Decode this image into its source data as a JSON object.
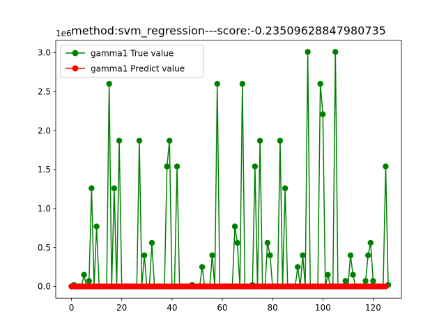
{
  "chart_data": {
    "type": "line",
    "title": "method:svm_regression---score:-0.23509628847980735",
    "xlabel": "",
    "ylabel": "",
    "y_offset_label": "1e6",
    "xlim": [
      -6.25,
      131.25
    ],
    "ylim": [
      -0.15,
      3.16
    ],
    "x_ticks": [
      0,
      20,
      40,
      60,
      80,
      100,
      120
    ],
    "y_ticks": [
      0.0,
      0.5,
      1.0,
      1.5,
      2.0,
      2.5,
      3.0
    ],
    "x_tick_labels": [
      "0",
      "20",
      "40",
      "60",
      "80",
      "100",
      "120"
    ],
    "y_tick_labels": [
      "0.0",
      "0.5",
      "1.0",
      "1.5",
      "2.0",
      "2.5",
      "3.0"
    ],
    "legend_placement": "upper-left",
    "grid": false,
    "series": [
      {
        "name": "gamma1 True value",
        "color": "#008000",
        "values": [
          0,
          0.02,
          0,
          0,
          0,
          0.15,
          0,
          0.07,
          1.26,
          0,
          0.77,
          0,
          0,
          0,
          0,
          2.6,
          0,
          1.26,
          0,
          1.87,
          0,
          0,
          0,
          0,
          0,
          0,
          0,
          1.87,
          0,
          0.4,
          0,
          0,
          0.56,
          0,
          0,
          0,
          0,
          0,
          1.54,
          1.87,
          0,
          0,
          1.54,
          0,
          0,
          0,
          0,
          0,
          0.02,
          0,
          0,
          0,
          0.25,
          0,
          0,
          0,
          0.4,
          0,
          2.6,
          0,
          0,
          0,
          0,
          0,
          0,
          0.77,
          0.56,
          0,
          2.6,
          0,
          0,
          0,
          0.02,
          1.54,
          0,
          1.87,
          0,
          0,
          0.56,
          0.4,
          0,
          0,
          0,
          1.87,
          0,
          1.26,
          0,
          0,
          0,
          0,
          0.25,
          0,
          0.4,
          0,
          3.01,
          0,
          0,
          0,
          0,
          2.6,
          2.21,
          0,
          0.15,
          0,
          0,
          3.01,
          0,
          0,
          0,
          0.07,
          0,
          0.4,
          0.15,
          0,
          0,
          0,
          0,
          0.07,
          0.4,
          0.56,
          0.07,
          0,
          0,
          0,
          0,
          1.54,
          0.02
        ]
      },
      {
        "name": "gamma1 Predict value",
        "color": "#ff0000",
        "values": [
          0,
          0,
          0,
          0,
          0,
          0,
          0,
          0,
          0,
          0,
          0,
          0,
          0,
          0,
          0,
          0,
          0,
          0,
          0,
          0,
          0,
          0,
          0,
          0,
          0,
          0,
          0,
          0,
          0,
          0,
          0,
          0,
          0,
          0,
          0,
          0,
          0,
          0,
          0,
          0,
          0,
          0,
          0,
          0,
          0,
          0,
          0,
          0,
          0,
          0,
          0,
          0,
          0,
          0,
          0,
          0,
          0,
          0,
          0,
          0,
          0,
          0,
          0,
          0,
          0,
          0,
          0,
          0,
          0,
          0,
          0,
          0,
          0,
          0,
          0,
          0,
          0,
          0,
          0,
          0,
          0,
          0,
          0,
          0,
          0,
          0,
          0,
          0,
          0,
          0,
          0,
          0,
          0,
          0,
          0,
          0,
          0,
          0,
          0,
          0,
          0,
          0,
          0,
          0,
          0,
          0,
          0,
          0,
          0,
          0,
          0,
          0,
          0,
          0,
          0,
          0,
          0,
          0,
          0,
          0,
          0,
          0,
          0,
          0,
          0,
          0
        ]
      }
    ]
  }
}
